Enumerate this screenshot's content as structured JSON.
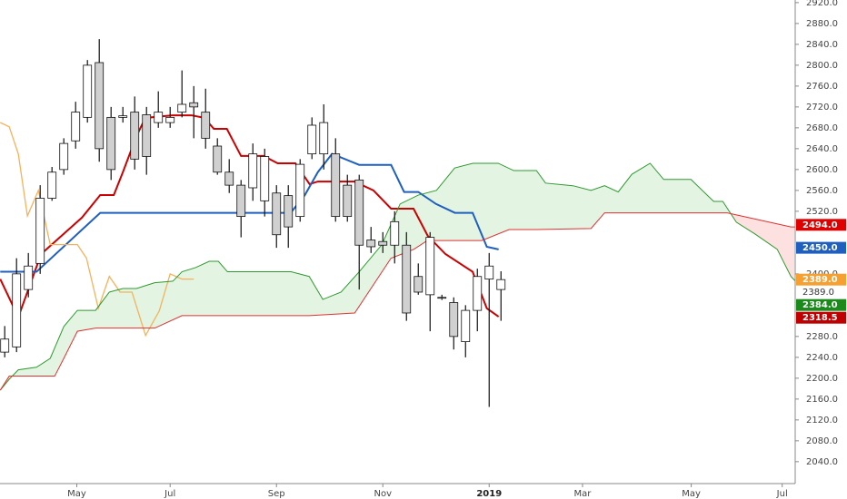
{
  "chart_data": {
    "type": "candlestick",
    "x": [
      0,
      1,
      2,
      3,
      4,
      5,
      6,
      7,
      8,
      9,
      10,
      11,
      12,
      13,
      14,
      15,
      16,
      17,
      18,
      19,
      20,
      21,
      22,
      23,
      24,
      25,
      26,
      27,
      28,
      29,
      30,
      31,
      32,
      33,
      34,
      35,
      36,
      37,
      38,
      39,
      40,
      41,
      42
    ],
    "open": [
      2250,
      2260,
      2370,
      2420,
      2545,
      2600,
      2655,
      2700,
      2805,
      2700,
      2700,
      2710,
      2705,
      2690,
      2690,
      2710,
      2728,
      2710,
      2645,
      2595,
      2570,
      2565,
      2540,
      2555,
      2550,
      2510,
      2630,
      2630,
      2630,
      2570,
      2580,
      2465,
      2462,
      2455,
      2455,
      2395,
      2360,
      2355,
      2345,
      2270,
      2330,
      2390,
      2370
    ],
    "high": [
      2300,
      2430,
      2440,
      2570,
      2605,
      2660,
      2730,
      2810,
      2850,
      2720,
      2720,
      2740,
      2720,
      2750,
      2720,
      2790,
      2760,
      2755,
      2660,
      2620,
      2580,
      2650,
      2640,
      2570,
      2570,
      2620,
      2700,
      2725,
      2660,
      2590,
      2590,
      2490,
      2480,
      2520,
      2480,
      2420,
      2480,
      2360,
      2355,
      2340,
      2410,
      2440,
      2405
    ],
    "low": [
      2240,
      2250,
      2355,
      2400,
      2540,
      2590,
      2640,
      2690,
      2615,
      2580,
      2690,
      2600,
      2590,
      2680,
      2680,
      2700,
      2660,
      2640,
      2590,
      2555,
      2470,
      2540,
      2510,
      2450,
      2450,
      2500,
      2620,
      2600,
      2500,
      2500,
      2370,
      2440,
      2440,
      2420,
      2310,
      2360,
      2290,
      2350,
      2255,
      2240,
      2290,
      2145,
      2310
    ],
    "close": [
      2275,
      2400,
      2415,
      2545,
      2595,
      2650,
      2710,
      2800,
      2640,
      2600,
      2703,
      2620,
      2625,
      2710,
      2700,
      2725,
      2720,
      2660,
      2595,
      2570,
      2510,
      2630,
      2625,
      2475,
      2490,
      2610,
      2685,
      2690,
      2510,
      2510,
      2455,
      2452,
      2455,
      2500,
      2325,
      2365,
      2470,
      2355,
      2280,
      2330,
      2395,
      2415,
      2389
    ],
    "up_color": "#ffffff",
    "down_color": "#d0d0d0",
    "wick_color": "#111111",
    "lines": [
      {
        "color": "#cc0000",
        "x": [
          -0.38,
          1.15,
          3.08,
          6.54,
          8.08,
          9.23,
          10.0,
          11.15,
          11.9,
          14.2,
          15.8,
          16.9,
          17.7,
          18.8,
          20.0,
          21.9,
          23.1,
          24.6,
          25.8,
          26.5,
          29.6,
          31.2,
          32.7,
          34.6,
          35.8,
          37.3,
          39.6,
          40.8,
          41.8
        ],
        "values": [
          2390,
          2317,
          2438,
          2508,
          2551,
          2551,
          2595,
          2664,
          2699,
          2704,
          2704,
          2699,
          2678,
          2678,
          2626,
          2626,
          2612,
          2612,
          2572,
          2577,
          2577,
          2560,
          2525,
          2525,
          2473,
          2438,
          2404,
          2334,
          2318
        ]
      },
      {
        "color": "#1f5fbf",
        "x": [
          -0.38,
          2.69,
          8.08,
          24.2,
          25.4,
          26.5,
          27.7,
          30.0,
          32.7,
          33.8,
          35.0,
          36.5,
          38.1,
          39.6,
          40.8,
          41.8
        ],
        "values": [
          2404,
          2404,
          2517,
          2517,
          2551,
          2595,
          2630,
          2609,
          2609,
          2557,
          2557,
          2534,
          2517,
          2517,
          2452,
          2447
        ]
      },
      {
        "color": "#f5b25a",
        "x": [
          -0.38,
          0.38,
          1.15,
          1.92,
          2.85,
          3.85,
          6.15,
          6.92,
          7.92,
          8.85,
          9.77,
          10.77,
          11.92,
          13.08,
          14.0,
          15.0,
          16.0
        ],
        "values": [
          2690,
          2682,
          2630,
          2511,
          2560,
          2456,
          2456,
          2430,
          2334,
          2395,
          2365,
          2365,
          2282,
          2329,
          2400,
          2390,
          2390
        ]
      },
      {
        "color": "#2e9a2e",
        "x": [
          -0.38,
          0.38,
          1.15,
          2.69,
          3.85,
          5.0,
          6.15,
          7.69,
          8.85,
          10.0,
          11.15,
          12.69,
          14.23,
          15.0,
          16.15,
          17.31,
          18.08,
          18.85,
          24.23,
          25.77,
          26.92,
          28.46,
          30.0,
          31.92,
          33.46,
          35.0,
          36.54,
          38.08,
          39.62,
          41.77,
          43.08,
          45.0,
          45.77,
          48.08,
          49.62,
          50.77,
          51.92,
          53.08,
          54.62,
          55.77,
          58.08,
          60.0,
          60.77,
          61.92,
          63.46,
          65.38,
          66.54,
          66.92
        ],
        "values": [
          2177,
          2198,
          2216,
          2221,
          2238,
          2299,
          2330,
          2330,
          2365,
          2372,
          2372,
          2383,
          2386,
          2404,
          2412,
          2424,
          2424,
          2404,
          2404,
          2395,
          2351,
          2365,
          2404,
          2456,
          2534,
          2551,
          2560,
          2603,
          2612,
          2612,
          2598,
          2598,
          2574,
          2569,
          2560,
          2569,
          2557,
          2591,
          2612,
          2581,
          2581,
          2539,
          2539,
          2499,
          2477,
          2447,
          2395,
          2386
        ]
      },
      {
        "color": "#e03030",
        "x": [
          -0.38,
          0.38,
          4.23,
          5.0,
          6.15,
          7.69,
          12.69,
          15.0,
          25.77,
          29.62,
          32.69,
          34.62,
          35.77,
          40.38,
          42.69,
          45.0,
          49.62,
          50.77,
          61.15,
          66.54,
          66.92
        ],
        "values": [
          2177,
          2204,
          2204,
          2238,
          2290,
          2296,
          2296,
          2320,
          2320,
          2325,
          2430,
          2447,
          2464,
          2464,
          2485,
          2485,
          2487,
          2517,
          2517,
          2490,
          2490
        ]
      }
    ],
    "cloud_colors": [
      "#e3f4e3",
      "#fde0e0"
    ],
    "xlim": [
      -0.4,
      66.9
    ],
    "ylim": [
      1998,
      2925
    ],
    "xticks": [
      {
        "value": 6.1,
        "label": "May"
      },
      {
        "value": 14,
        "label": "Jul"
      },
      {
        "value": 23,
        "label": "Sep"
      },
      {
        "value": 32,
        "label": "Nov"
      },
      {
        "value": 41,
        "label": "2019",
        "bold": true
      },
      {
        "value": 48.9,
        "label": "Mar"
      },
      {
        "value": 58.1,
        "label": "May"
      },
      {
        "value": 65.8,
        "label": "Jul"
      }
    ],
    "yticks": [
      {
        "value": 2040,
        "label": "2040.0"
      },
      {
        "value": 2080,
        "label": "2080.0"
      },
      {
        "value": 2120,
        "label": "2120.0"
      },
      {
        "value": 2160,
        "label": "2160.0"
      },
      {
        "value": 2200,
        "label": "2200.0"
      },
      {
        "value": 2240,
        "label": "2240.0"
      },
      {
        "value": 2280,
        "label": "2280.0"
      },
      {
        "value": 2400,
        "label": "2400.0"
      },
      {
        "value": 2520,
        "label": "2520.0"
      },
      {
        "value": 2560,
        "label": "2560.0"
      },
      {
        "value": 2600,
        "label": "2600.0"
      },
      {
        "value": 2640,
        "label": "2640.0"
      },
      {
        "value": 2680,
        "label": "2680.0"
      },
      {
        "value": 2720,
        "label": "2720.0"
      },
      {
        "value": 2760,
        "label": "2760.0"
      },
      {
        "value": 2800,
        "label": "2800.0"
      },
      {
        "value": 2840,
        "label": "2840.0"
      },
      {
        "value": 2880,
        "label": "2880.0"
      },
      {
        "value": 2920,
        "label": "2920.0"
      }
    ],
    "price_labels": [
      {
        "value": 2494,
        "label": "2494.0",
        "color": "#e00000"
      },
      {
        "value": 2450,
        "label": "2450.0",
        "color": "#1f5fbf"
      },
      {
        "value": 2389,
        "label": "2389.0",
        "color": "#f5a030"
      },
      {
        "value": 2389,
        "label": "2389.0",
        "color": null
      },
      {
        "value": 2384,
        "label": "2384.0",
        "color": "#1a8a1a"
      },
      {
        "value": 2318.5,
        "label": "2318.5",
        "color": "#c00000"
      }
    ]
  }
}
